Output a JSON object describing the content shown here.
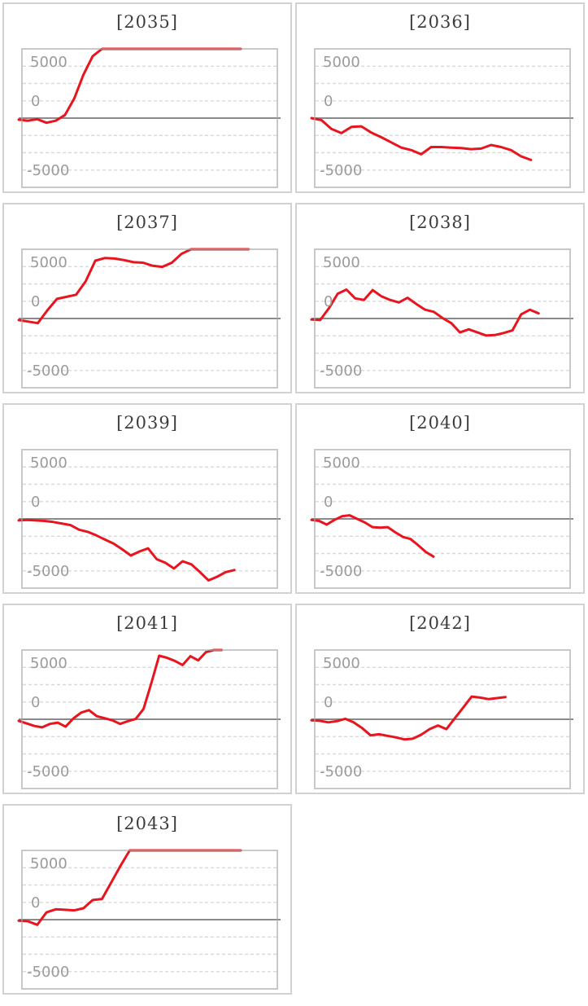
{
  "page": {
    "background": "#ffffff"
  },
  "colors": {
    "series_line": "#e8141e",
    "series_line_clipped_tint": "#d98a8a",
    "zero_line": "#8a8a8a",
    "gridline": "#d9d9d9",
    "chart_border": "#a8a8a8",
    "panel_border": "#d2d2d2",
    "title_text": "#3d3d3d",
    "axis_label_text": "#9b9b9b"
  },
  "axis": {
    "tick_labels": [
      "5000",
      "0",
      "-5000"
    ]
  },
  "chart_data": [
    {
      "type": "line",
      "title": "[2035]",
      "y_axis": {
        "y_min": -6700,
        "y_max": 6700,
        "ticks_shown": [
          5000,
          0,
          -5000
        ],
        "grid": "dotted-horizontal",
        "zero_line": "solid"
      },
      "x_axis": {
        "labels_shown": false
      },
      "legend": "none",
      "x_end_fraction": 0.86,
      "values": [
        -150,
        -250,
        -100,
        -450,
        -250,
        300,
        1900,
        4200,
        6000,
        6700,
        6700,
        6700,
        6700,
        6700,
        6700,
        6700,
        6700,
        6700,
        6700,
        6700,
        6700,
        6700,
        6700,
        6700,
        6700
      ]
    },
    {
      "type": "line",
      "title": "[2036]",
      "y_axis": {
        "y_min": -6700,
        "y_max": 6700,
        "ticks_shown": [
          5000,
          0,
          -5000
        ],
        "grid": "dotted-horizontal",
        "zero_line": "solid"
      },
      "x_axis": {
        "labels_shown": false
      },
      "legend": "none",
      "x_end_fraction": 0.85,
      "values": [
        0,
        -200,
        -1050,
        -1450,
        -850,
        -800,
        -1400,
        -1850,
        -2350,
        -2850,
        -3100,
        -3500,
        -2800,
        -2800,
        -2850,
        -2900,
        -3000,
        -2950,
        -2600,
        -2800,
        -3100,
        -3700,
        -4050
      ]
    },
    {
      "type": "line",
      "title": "[2037]",
      "y_axis": {
        "y_min": -6700,
        "y_max": 6700,
        "ticks_shown": [
          5000,
          0,
          -5000
        ],
        "grid": "dotted-horizontal",
        "zero_line": "solid"
      },
      "x_axis": {
        "labels_shown": false
      },
      "legend": "none",
      "x_end_fraction": 0.89,
      "values": [
        -150,
        -300,
        -450,
        800,
        1900,
        2100,
        2300,
        3600,
        5600,
        5850,
        5800,
        5650,
        5450,
        5400,
        5100,
        5000,
        5400,
        6250,
        6700,
        6700,
        6700,
        6700,
        6700,
        6700,
        6700
      ]
    },
    {
      "type": "line",
      "title": "[2038]",
      "y_axis": {
        "y_min": -6700,
        "y_max": 6700,
        "ticks_shown": [
          5000,
          0,
          -5000
        ],
        "grid": "dotted-horizontal",
        "zero_line": "solid"
      },
      "x_axis": {
        "labels_shown": false
      },
      "legend": "none",
      "x_end_fraction": 0.88,
      "values": [
        -100,
        -150,
        1000,
        2400,
        2800,
        1950,
        1800,
        2750,
        2150,
        1800,
        1550,
        2000,
        1400,
        850,
        650,
        50,
        -450,
        -1350,
        -1050,
        -1350,
        -1650,
        -1600,
        -1400,
        -1150,
        400,
        850,
        500
      ]
    },
    {
      "type": "line",
      "title": "[2039]",
      "y_axis": {
        "y_min": -6700,
        "y_max": 6700,
        "ticks_shown": [
          5000,
          0,
          -5000
        ],
        "grid": "dotted-horizontal",
        "zero_line": "solid"
      },
      "x_axis": {
        "labels_shown": false
      },
      "legend": "none",
      "x_end_fraction": 0.835,
      "values": [
        -150,
        -100,
        -150,
        -200,
        -300,
        -450,
        -600,
        -1050,
        -1250,
        -1600,
        -2000,
        -2400,
        -2950,
        -3550,
        -3150,
        -2850,
        -3900,
        -4250,
        -4800,
        -4100,
        -4400,
        -5150,
        -5950,
        -5600,
        -5150,
        -4950
      ]
    },
    {
      "type": "line",
      "title": "[2040]",
      "y_axis": {
        "y_min": -6700,
        "y_max": 6700,
        "ticks_shown": [
          5000,
          0,
          -5000
        ],
        "grid": "dotted-horizontal",
        "zero_line": "solid"
      },
      "x_axis": {
        "labels_shown": false
      },
      "legend": "none",
      "x_end_fraction": 0.468,
      "values": [
        -100,
        -200,
        -550,
        -100,
        250,
        350,
        0,
        -350,
        -800,
        -850,
        -800,
        -1300,
        -1750,
        -1950,
        -2550,
        -3200,
        -3650
      ]
    },
    {
      "type": "line",
      "title": "[2041]",
      "y_axis": {
        "y_min": -6700,
        "y_max": 6700,
        "ticks_shown": [
          5000,
          0,
          -5000
        ],
        "grid": "dotted-horizontal",
        "zero_line": "solid"
      },
      "x_axis": {
        "labels_shown": false
      },
      "legend": "none",
      "x_end_fraction": 0.785,
      "values": [
        -150,
        -400,
        -650,
        -780,
        -450,
        -320,
        -720,
        80,
        650,
        880,
        300,
        100,
        -100,
        -450,
        -180,
        30,
        1000,
        3500,
        6150,
        5950,
        5650,
        5250,
        6100,
        5700,
        6500,
        6700,
        6700
      ]
    },
    {
      "type": "line",
      "title": "[2042]",
      "y_axis": {
        "y_min": -6700,
        "y_max": 6700,
        "ticks_shown": [
          5000,
          0,
          -5000
        ],
        "grid": "dotted-horizontal",
        "zero_line": "solid"
      },
      "x_axis": {
        "labels_shown": false
      },
      "legend": "none",
      "x_end_fraction": 0.75,
      "values": [
        -100,
        -150,
        -300,
        -180,
        50,
        -300,
        -850,
        -1550,
        -1450,
        -1600,
        -1750,
        -1950,
        -1880,
        -1500,
        -950,
        -600,
        -950,
        100,
        1150,
        2200,
        2100,
        1950,
        2050,
        2150
      ]
    },
    {
      "type": "line",
      "title": "[2043]",
      "y_axis": {
        "y_min": -6700,
        "y_max": 6700,
        "ticks_shown": [
          5000,
          0,
          -5000
        ],
        "grid": "dotted-horizontal",
        "zero_line": "solid"
      },
      "x_axis": {
        "labels_shown": false
      },
      "legend": "none",
      "x_end_fraction": 0.86,
      "values": [
        -100,
        -160,
        -500,
        700,
        1000,
        950,
        900,
        1100,
        1900,
        2000,
        3600,
        5200,
        6700,
        6700,
        6700,
        6700,
        6700,
        6700,
        6700,
        6700,
        6700,
        6700,
        6700,
        6700,
        6700
      ]
    }
  ]
}
